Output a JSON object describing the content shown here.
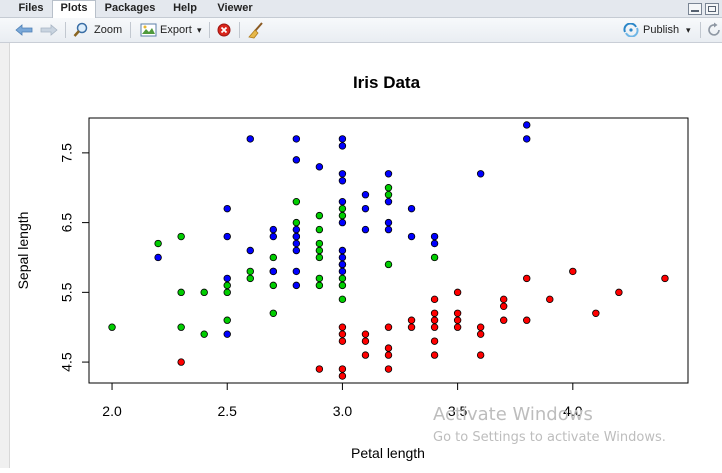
{
  "tabs": [
    {
      "label": "Files",
      "active": false
    },
    {
      "label": "Plots",
      "active": true
    },
    {
      "label": "Packages",
      "active": false
    },
    {
      "label": "Help",
      "active": false
    },
    {
      "label": "Viewer",
      "active": false
    }
  ],
  "toolbar": {
    "zoom_label": "Zoom",
    "export_label": "Export",
    "export_caret": "▾",
    "publish_label": "Publish",
    "publish_caret": "▾"
  },
  "watermark": {
    "line1": "Activate Windows",
    "line2": "Go to Settings to activate Windows."
  },
  "chart_data": {
    "type": "scatter",
    "title": "Iris Data",
    "xlabel": "Petal length",
    "ylabel": "Sepal length",
    "xlim": [
      1.9,
      4.5
    ],
    "ylim": [
      4.2,
      8.0
    ],
    "xticks": [
      "2.0",
      "2.5",
      "3.0",
      "3.5",
      "4.0"
    ],
    "yticks": [
      "4.5",
      "5.5",
      "6.5",
      "7.5"
    ],
    "grid": false,
    "legend": "none",
    "series": [
      {
        "color": "#ff0000",
        "points": [
          [
            2.3,
            4.5
          ],
          [
            2.9,
            4.4
          ],
          [
            3.0,
            4.3
          ],
          [
            3.0,
            4.4
          ],
          [
            3.0,
            4.8
          ],
          [
            3.0,
            4.9
          ],
          [
            3.0,
            5.0
          ],
          [
            3.1,
            4.6
          ],
          [
            3.1,
            4.8
          ],
          [
            3.1,
            4.9
          ],
          [
            3.2,
            4.4
          ],
          [
            3.2,
            4.6
          ],
          [
            3.2,
            4.7
          ],
          [
            3.2,
            5.0
          ],
          [
            3.3,
            5.0
          ],
          [
            3.3,
            5.1
          ],
          [
            3.4,
            4.6
          ],
          [
            3.4,
            4.8
          ],
          [
            3.4,
            5.0
          ],
          [
            3.4,
            5.1
          ],
          [
            3.4,
            5.2
          ],
          [
            3.4,
            5.4
          ],
          [
            3.5,
            5.0
          ],
          [
            3.5,
            5.1
          ],
          [
            3.5,
            5.2
          ],
          [
            3.5,
            5.5
          ],
          [
            3.6,
            4.6
          ],
          [
            3.6,
            4.9
          ],
          [
            3.6,
            5.0
          ],
          [
            3.7,
            5.1
          ],
          [
            3.7,
            5.3
          ],
          [
            3.7,
            5.4
          ],
          [
            3.8,
            5.1
          ],
          [
            3.8,
            5.7
          ],
          [
            3.9,
            5.4
          ],
          [
            4.0,
            5.8
          ],
          [
            4.1,
            5.2
          ],
          [
            4.2,
            5.5
          ],
          [
            4.4,
            5.7
          ]
        ]
      },
      {
        "color": "#00cd00",
        "points": [
          [
            2.0,
            5.0
          ],
          [
            2.2,
            6.2
          ],
          [
            2.3,
            5.0
          ],
          [
            2.3,
            5.5
          ],
          [
            2.3,
            6.3
          ],
          [
            2.4,
            4.9
          ],
          [
            2.4,
            5.5
          ],
          [
            2.5,
            5.1
          ],
          [
            2.5,
            5.5
          ],
          [
            2.5,
            5.6
          ],
          [
            2.6,
            5.7
          ],
          [
            2.6,
            5.8
          ],
          [
            2.7,
            5.2
          ],
          [
            2.7,
            5.6
          ],
          [
            2.7,
            5.8
          ],
          [
            2.7,
            6.0
          ],
          [
            2.8,
            6.3
          ],
          [
            2.8,
            6.5
          ],
          [
            2.8,
            6.8
          ],
          [
            2.9,
            5.6
          ],
          [
            2.9,
            5.7
          ],
          [
            2.9,
            6.0
          ],
          [
            2.9,
            6.1
          ],
          [
            2.9,
            6.2
          ],
          [
            2.9,
            6.4
          ],
          [
            2.9,
            6.6
          ],
          [
            3.0,
            5.4
          ],
          [
            3.0,
            5.6
          ],
          [
            3.0,
            5.7
          ],
          [
            3.0,
            5.9
          ],
          [
            3.0,
            6.6
          ],
          [
            3.0,
            6.7
          ],
          [
            3.2,
            5.9
          ],
          [
            3.2,
            6.9
          ],
          [
            3.2,
            7.0
          ],
          [
            3.4,
            6.0
          ]
        ]
      },
      {
        "color": "#0000ff",
        "points": [
          [
            2.2,
            6.0
          ],
          [
            2.5,
            4.9
          ],
          [
            2.5,
            5.7
          ],
          [
            2.5,
            6.3
          ],
          [
            2.5,
            6.7
          ],
          [
            2.6,
            6.1
          ],
          [
            2.6,
            7.7
          ],
          [
            2.7,
            5.8
          ],
          [
            2.7,
            6.3
          ],
          [
            2.7,
            6.4
          ],
          [
            2.8,
            5.6
          ],
          [
            2.8,
            5.8
          ],
          [
            2.8,
            6.1
          ],
          [
            2.8,
            6.2
          ],
          [
            2.8,
            6.3
          ],
          [
            2.8,
            6.4
          ],
          [
            2.8,
            7.4
          ],
          [
            2.8,
            7.7
          ],
          [
            2.9,
            7.3
          ],
          [
            3.0,
            5.8
          ],
          [
            3.0,
            5.9
          ],
          [
            3.0,
            6.0
          ],
          [
            3.0,
            6.1
          ],
          [
            3.0,
            6.5
          ],
          [
            3.0,
            6.8
          ],
          [
            3.0,
            7.1
          ],
          [
            3.0,
            7.2
          ],
          [
            3.0,
            7.6
          ],
          [
            3.0,
            7.7
          ],
          [
            3.1,
            6.4
          ],
          [
            3.1,
            6.7
          ],
          [
            3.1,
            6.9
          ],
          [
            3.2,
            6.4
          ],
          [
            3.2,
            6.5
          ],
          [
            3.2,
            6.8
          ],
          [
            3.2,
            7.2
          ],
          [
            3.3,
            6.3
          ],
          [
            3.3,
            6.7
          ],
          [
            3.4,
            6.2
          ],
          [
            3.4,
            6.3
          ],
          [
            3.6,
            7.2
          ],
          [
            3.8,
            7.7
          ],
          [
            3.8,
            7.9
          ]
        ]
      }
    ]
  }
}
